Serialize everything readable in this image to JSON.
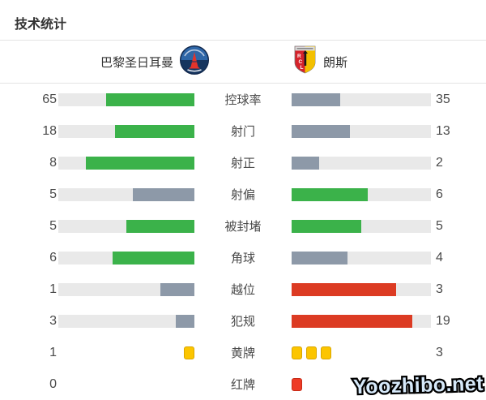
{
  "title": "技术统计",
  "teams": {
    "home": {
      "name": "巴黎圣日耳曼",
      "badge": "psg-crest"
    },
    "away": {
      "name": "朗斯",
      "badge": "lens-crest"
    }
  },
  "colors": {
    "winner_bar": "#3bb24a",
    "loser_bar": "#8d99a8",
    "negative_bar": "#dc3b23",
    "yellow_card": "#fcc500",
    "red_card": "#ee3b26",
    "bar_track": "#e9e9e9",
    "text": "#4a4a4a"
  },
  "chart_data": {
    "type": "bar",
    "title": "技术统计",
    "layout": "mirrored horizontal comparison bars; team values on outer edges, stat label centered; winner bar green, loser bar slate gray, negative stats (offsides/fouls) red, cards drawn as squares",
    "categories": [
      "控球率",
      "射门",
      "射正",
      "射偏",
      "被封堵",
      "角球",
      "越位",
      "犯规",
      "黄牌",
      "红牌"
    ],
    "series": [
      {
        "name": "巴黎圣日耳曼",
        "values": [
          65,
          18,
          8,
          5,
          5,
          6,
          1,
          3,
          1,
          0
        ]
      },
      {
        "name": "朗斯",
        "values": [
          35,
          13,
          2,
          6,
          5,
          4,
          3,
          19,
          3,
          1
        ]
      }
    ]
  },
  "stats": {
    "rows": [
      {
        "label": "控球率",
        "kind": "bar",
        "home": {
          "value": "65",
          "pct": 65,
          "color": "green"
        },
        "away": {
          "value": "35",
          "pct": 35,
          "color": "gray"
        }
      },
      {
        "label": "射门",
        "kind": "bar",
        "home": {
          "value": "18",
          "pct": 58.1,
          "color": "green"
        },
        "away": {
          "value": "13",
          "pct": 41.9,
          "color": "gray"
        }
      },
      {
        "label": "射正",
        "kind": "bar",
        "home": {
          "value": "8",
          "pct": 80,
          "color": "green"
        },
        "away": {
          "value": "2",
          "pct": 20,
          "color": "gray"
        }
      },
      {
        "label": "射偏",
        "kind": "bar",
        "home": {
          "value": "5",
          "pct": 45.5,
          "color": "gray"
        },
        "away": {
          "value": "6",
          "pct": 54.5,
          "color": "green"
        }
      },
      {
        "label": "被封堵",
        "kind": "bar",
        "home": {
          "value": "5",
          "pct": 50,
          "color": "green"
        },
        "away": {
          "value": "5",
          "pct": 50,
          "color": "green"
        }
      },
      {
        "label": "角球",
        "kind": "bar",
        "home": {
          "value": "6",
          "pct": 60,
          "color": "green"
        },
        "away": {
          "value": "4",
          "pct": 40,
          "color": "gray"
        }
      },
      {
        "label": "越位",
        "kind": "bar",
        "home": {
          "value": "1",
          "pct": 25,
          "color": "gray"
        },
        "away": {
          "value": "3",
          "pct": 75,
          "color": "red"
        }
      },
      {
        "label": "犯规",
        "kind": "bar",
        "home": {
          "value": "3",
          "pct": 13.6,
          "color": "gray"
        },
        "away": {
          "value": "19",
          "pct": 86.4,
          "color": "red"
        }
      },
      {
        "label": "黄牌",
        "kind": "cards",
        "home": {
          "value": "1",
          "cards": 1,
          "card": "yellow"
        },
        "away": {
          "value": "3",
          "cards": 3,
          "card": "yellow"
        }
      },
      {
        "label": "红牌",
        "kind": "cards",
        "home": {
          "value": "0",
          "cards": 0,
          "card": "red"
        },
        "away": {
          "value": "1",
          "cards": 1,
          "card": "red"
        }
      }
    ]
  },
  "watermark": "Yoozhibo.net"
}
